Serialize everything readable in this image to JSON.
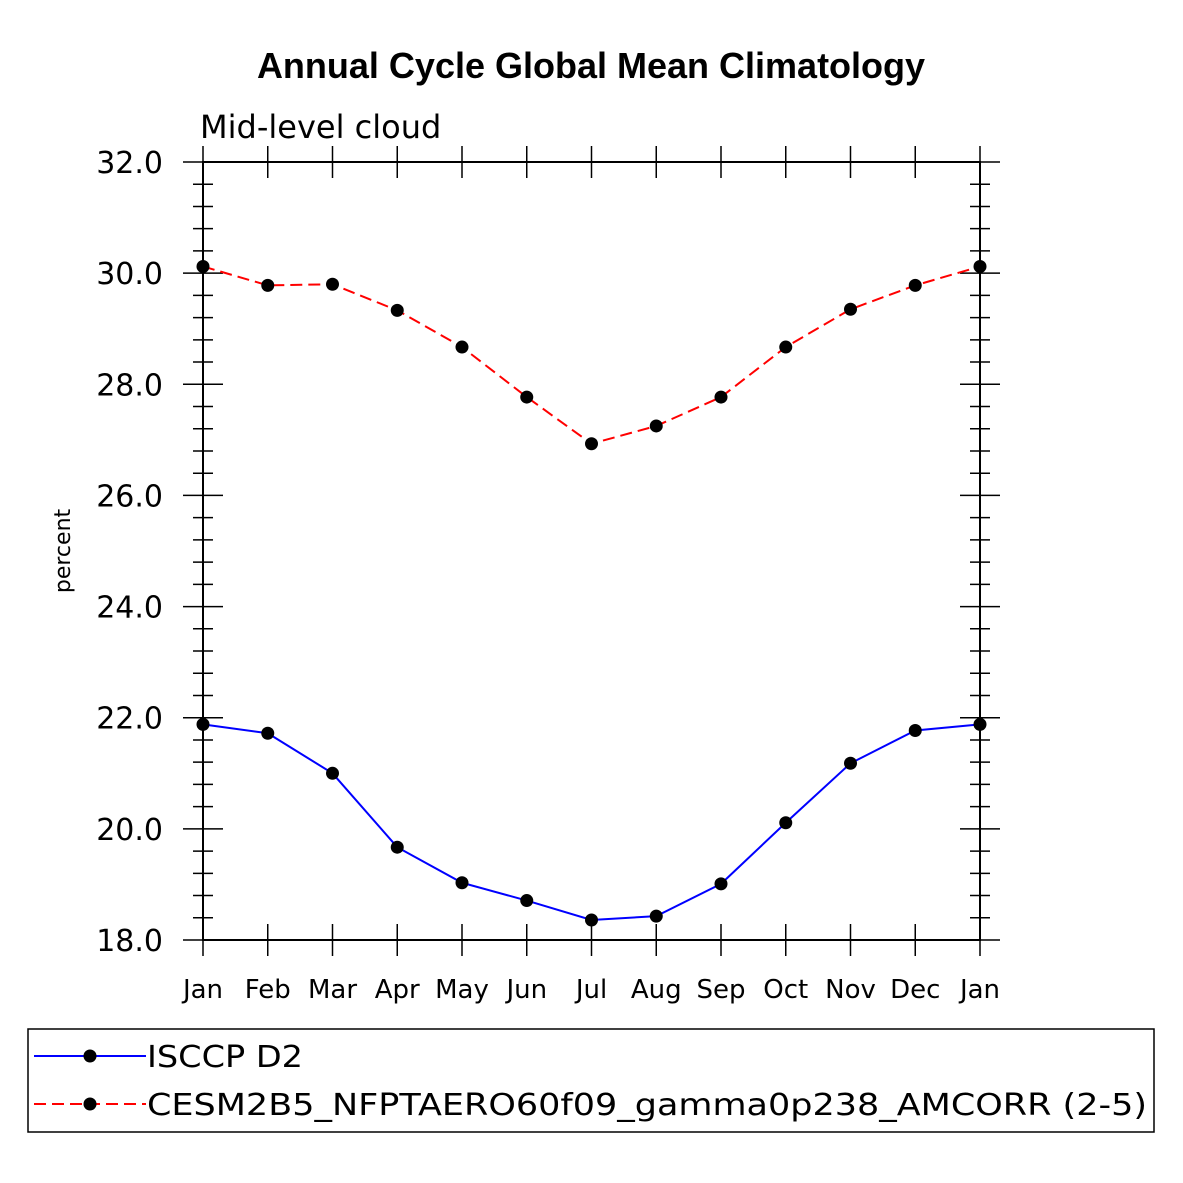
{
  "chart_data": {
    "type": "line",
    "title": "Annual Cycle Global Mean Climatology",
    "subtitle": "Mid-level cloud",
    "xlabel": "",
    "ylabel": "percent",
    "ylim": [
      18.0,
      32.0
    ],
    "yticks": [
      "18.0",
      "20.0",
      "22.0",
      "24.0",
      "26.0",
      "28.0",
      "30.0",
      "32.0"
    ],
    "categories": [
      "Jan",
      "Feb",
      "Mar",
      "Apr",
      "May",
      "Jun",
      "Jul",
      "Aug",
      "Sep",
      "Oct",
      "Nov",
      "Dec",
      "Jan"
    ],
    "grid": false,
    "legend_position": "bottom",
    "series": [
      {
        "name": "ISCCP D2",
        "color": "#0000ff",
        "dash": "solid",
        "values": [
          21.88,
          21.72,
          21.0,
          19.67,
          19.03,
          18.71,
          18.36,
          18.43,
          19.01,
          20.11,
          21.18,
          21.77,
          21.88
        ]
      },
      {
        "name": "CESM2B5_NFPTAERO60f09_gamma0p238_AMCORR (2-5)",
        "color": "#ff0000",
        "dash": "dashed",
        "values": [
          30.12,
          29.78,
          29.8,
          29.33,
          28.67,
          27.77,
          26.93,
          27.25,
          27.77,
          28.67,
          29.35,
          29.78,
          30.12
        ]
      }
    ]
  }
}
